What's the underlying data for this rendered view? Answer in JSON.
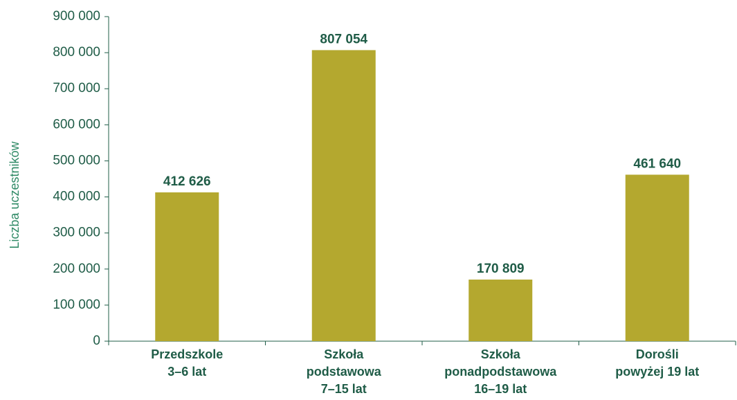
{
  "chart_data": {
    "type": "bar",
    "y_label": "Liczba uczestników",
    "categories": [
      "Przedszkole\n3–6 lat",
      "Szkoła\npodstawowa\n7–15 lat",
      "Szkoła\nponadpodstawowa\n16–19 lat",
      "Dorośli\npowyżej 19 lat"
    ],
    "values": [
      412626,
      807054,
      170809,
      461640
    ],
    "value_labels": [
      "412 626",
      "807 054",
      "170 809",
      "461 640"
    ],
    "color": "#b4a82f",
    "ylim": [
      0,
      900000
    ],
    "yticks": [
      0,
      {
        "value": 100000,
        "label": "100 000"
      },
      {
        "value": 200000,
        "label": "200 000"
      },
      {
        "value": 300000,
        "label": "300 000"
      },
      {
        "value": 400000,
        "label": "400 000"
      },
      {
        "value": 500000,
        "label": "500 000"
      },
      {
        "value": 600000,
        "label": "600 000"
      },
      {
        "value": 700000,
        "label": "700 000"
      },
      {
        "value": 800000,
        "label": "800 000"
      },
      {
        "value": 900000,
        "label": "900 000"
      }
    ],
    "grid": false
  }
}
